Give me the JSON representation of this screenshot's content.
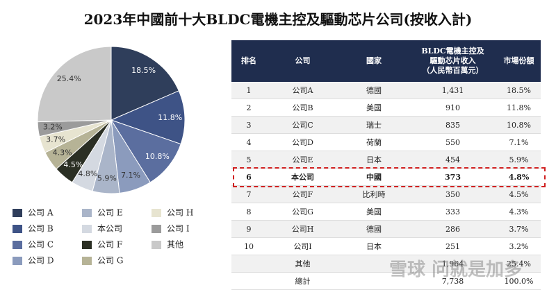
{
  "title": "2023年中國前十大BLDC電機主控及驅動芯片公司(按收入計)",
  "chart_data": {
    "type": "pie",
    "categories": [
      "公司 A",
      "公司 B",
      "公司 C",
      "公司 D",
      "公司 E",
      "本公司",
      "公司 F",
      "公司 G",
      "公司 H",
      "公司 I",
      "其他"
    ],
    "values": [
      18.5,
      11.8,
      10.8,
      7.1,
      5.9,
      4.8,
      4.5,
      4.3,
      3.7,
      3.2,
      25.4
    ],
    "value_labels": [
      "18.5%",
      "11.8%",
      "10.8%",
      "7.1%",
      "5.9%",
      "4.8%",
      "4.5%",
      "4.3%",
      "3.7%",
      "3.2%",
      "25.4%"
    ],
    "colors": [
      "#2f3e5b",
      "#3e5386",
      "#5b6e9f",
      "#8b9bbd",
      "#aab5c9",
      "#d4d9e1",
      "#2b2f24",
      "#b6b396",
      "#e7e4d0",
      "#9b9b9b",
      "#c9c9c9"
    ]
  },
  "table": {
    "columns": [
      "排名",
      "公司",
      "國家",
      [
        "BLDC電機主控及",
        "驅動芯片收入",
        "（人民幣百萬元）"
      ],
      "市場份額"
    ],
    "rows": [
      [
        "1",
        "公司A",
        "德國",
        "1,431",
        "18.5%"
      ],
      [
        "2",
        "公司B",
        "美國",
        "910",
        "11.8%"
      ],
      [
        "3",
        "公司C",
        "瑞士",
        "835",
        "10.8%"
      ],
      [
        "4",
        "公司D",
        "荷蘭",
        "550",
        "7.1%"
      ],
      [
        "5",
        "公司E",
        "日本",
        "454",
        "5.9%"
      ],
      [
        "6",
        "本公司",
        "中國",
        "373",
        "4.8%"
      ],
      [
        "7",
        "公司F",
        "比利時",
        "350",
        "4.5%"
      ],
      [
        "8",
        "公司G",
        "美國",
        "333",
        "4.3%"
      ],
      [
        "9",
        "公司H",
        "德國",
        "286",
        "3.7%"
      ],
      [
        "10",
        "公司I",
        "日本",
        "251",
        "3.2%"
      ],
      [
        null,
        "其他",
        null,
        "1,964",
        "25.4%"
      ],
      [
        null,
        "總計",
        null,
        "7,738",
        "100.0%"
      ]
    ],
    "highlight_row": 5
  },
  "watermark": "雪球 问就是加多"
}
